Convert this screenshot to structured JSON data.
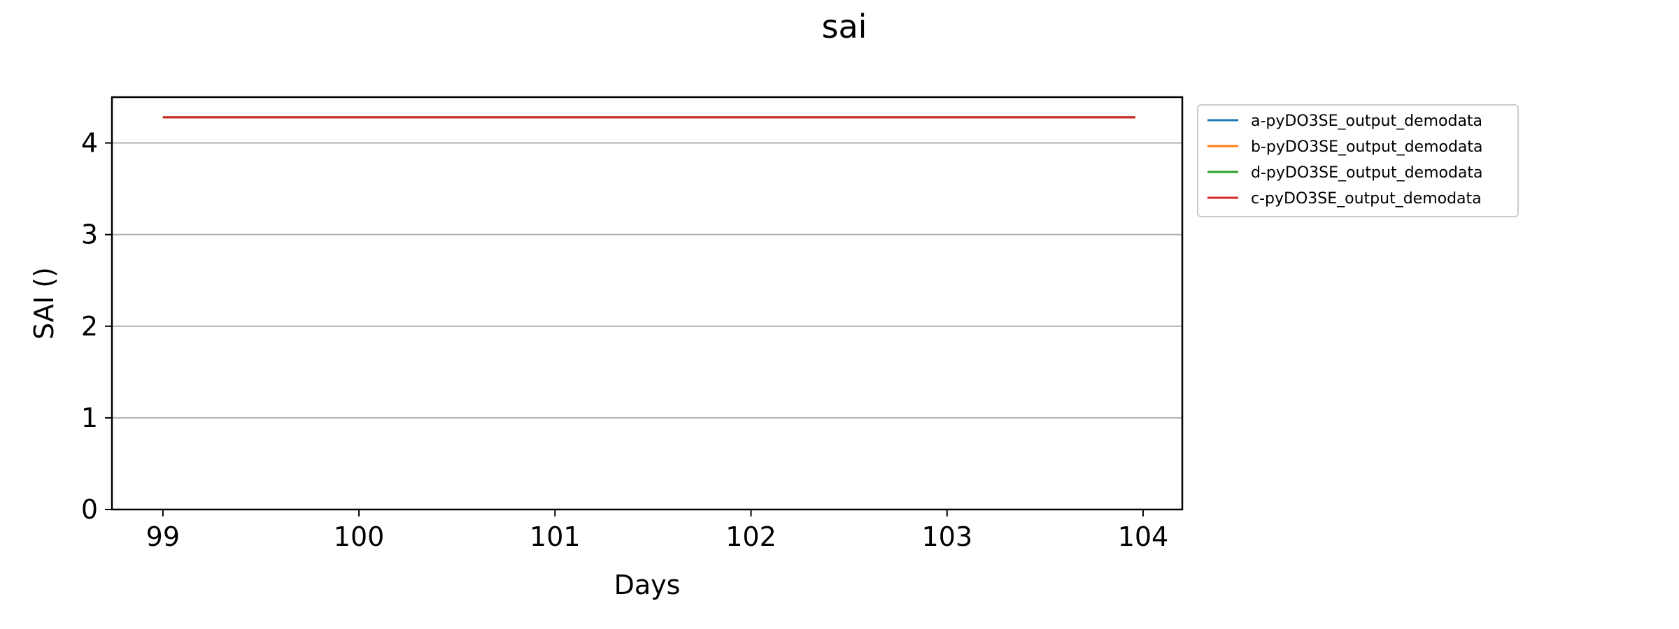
{
  "chart_data": {
    "type": "line",
    "title": "sai",
    "xlabel": "Days",
    "ylabel": "SAI ()",
    "xlim": [
      98.74,
      104.2
    ],
    "ylim": [
      0,
      4.5
    ],
    "xticks": [
      99,
      100,
      101,
      102,
      103,
      104
    ],
    "yticks": [
      0,
      1,
      2,
      3,
      4
    ],
    "grid": "y",
    "legend_position": "outside-right-top",
    "series": [
      {
        "name": "a-pyDO3SE_output_demodata",
        "color": "#1f77b4",
        "x": [
          99,
          103.96
        ],
        "y": [
          4.28,
          4.28
        ]
      },
      {
        "name": "b-pyDO3SE_output_demodata",
        "color": "#ff7f0e",
        "x": [
          99,
          103.96
        ],
        "y": [
          4.28,
          4.28
        ]
      },
      {
        "name": "d-pyDO3SE_output_demodata",
        "color": "#2ca02c",
        "x": [
          99,
          103.96
        ],
        "y": [
          4.28,
          4.28
        ]
      },
      {
        "name": "c-pyDO3SE_output_demodata",
        "color": "#d62728",
        "x": [
          99,
          103.96
        ],
        "y": [
          4.28,
          4.28
        ]
      }
    ]
  }
}
